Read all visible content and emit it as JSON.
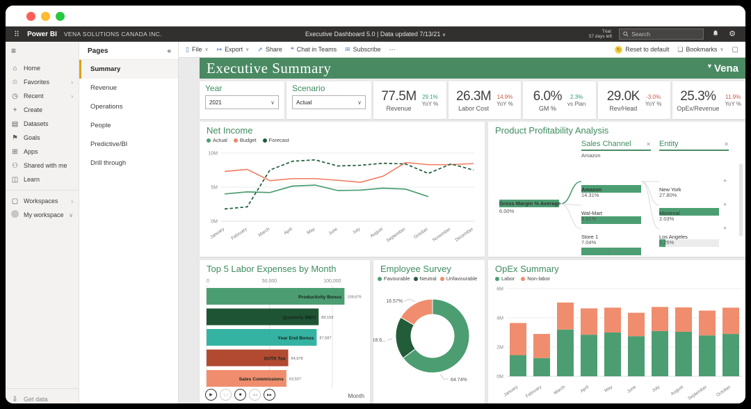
{
  "colors": {
    "brand_green": "#4a8a63",
    "title_green": "#3f8b5f",
    "positive": "#2e9e68",
    "negative": "#c65a45",
    "actual": "#4c9e72",
    "budget": "#f0836a",
    "forecast": "#1e5c38",
    "neutral_dark": "#225c39",
    "salmon": "#f08d6e",
    "teal": "#35b3a2",
    "rust": "#b14a31",
    "dark_green_bar": "#1e5434"
  },
  "titlebar": {
    "traffic_lights": [
      "#ff5f57",
      "#febc2e",
      "#28c840"
    ]
  },
  "topbar": {
    "waffle": "⠿",
    "app_name": "Power BI",
    "org_name": "VENA SOLUTIONS CANADA INC.",
    "center_text": "Executive Dashboard 5.0  |  Data updated 7/13/21",
    "center_chevron": "∨",
    "trial_line1": "Trial:",
    "trial_line2": "57 days left",
    "search_placeholder": "Search",
    "bell_glyph": "",
    "gear_glyph": "⚙"
  },
  "sidebar": {
    "burger": "≡",
    "items": [
      {
        "label": "Home",
        "icon": "home-icon",
        "glyph": "⌂",
        "chevron": ""
      },
      {
        "label": "Favorites",
        "icon": "star-icon",
        "glyph": "☆",
        "chevron": "›"
      },
      {
        "label": "Recent",
        "icon": "clock-icon",
        "glyph": "◷",
        "chevron": "›"
      },
      {
        "label": "Create",
        "icon": "plus-icon",
        "glyph": "+",
        "chevron": ""
      },
      {
        "label": "Datasets",
        "icon": "datasets-icon",
        "glyph": "▤",
        "chevron": ""
      },
      {
        "label": "Goals",
        "icon": "goals-icon",
        "glyph": "⚑",
        "chevron": ""
      },
      {
        "label": "Apps",
        "icon": "apps-icon",
        "glyph": "⊞",
        "chevron": ""
      },
      {
        "label": "Shared with me",
        "icon": "shared-icon",
        "glyph": "⚇",
        "chevron": ""
      },
      {
        "label": "Learn",
        "icon": "learn-icon",
        "glyph": "◫",
        "chevron": ""
      }
    ],
    "workspace_items": [
      {
        "label": "Workspaces",
        "icon": "workspaces-icon",
        "glyph": "▢",
        "chevron": "›"
      },
      {
        "label": "My workspace",
        "icon": "avatar-icon",
        "glyph": "",
        "chevron": "∨"
      }
    ],
    "bottom_label": "Get data"
  },
  "pages_panel": {
    "title": "Pages",
    "collapse_glyph": "«",
    "selected": "Summary",
    "items": [
      "Summary",
      "Revenue",
      "Operations",
      "People",
      "Predictive/BI",
      "Drill through"
    ]
  },
  "toolbar": {
    "items": [
      {
        "label": "File",
        "glyph": "▯",
        "chevron": "∨"
      },
      {
        "label": "Export",
        "glyph": "↦",
        "chevron": "∨"
      },
      {
        "label": "Share",
        "glyph": "⇗",
        "chevron": ""
      },
      {
        "label": "Chat in Teams",
        "glyph": "❝",
        "chevron": ""
      },
      {
        "label": "Subscribe",
        "glyph": "✉",
        "chevron": ""
      },
      {
        "label": "⋯",
        "glyph": "",
        "chevron": ""
      }
    ],
    "reset_label": "Reset to default",
    "reset_glyph": "↻",
    "bookmarks_label": "Bookmarks",
    "bookmarks_glyph": "❏",
    "bookmarks_chevron": "∨",
    "fullscreen_glyph": "▢"
  },
  "report": {
    "title": "Executive Summary",
    "brand": "Vena",
    "brand_mark": "▼",
    "slicers": [
      {
        "label": "Year",
        "value": "2021"
      },
      {
        "label": "Scenario",
        "value": "Actual"
      }
    ],
    "kpis": [
      {
        "value": "77.5M",
        "label": "Revenue",
        "delta": "29.1%",
        "delta_label": "YoY %",
        "delta_sign": "pos"
      },
      {
        "value": "26.3M",
        "label": "Labor Cost",
        "delta": "14.9%",
        "delta_label": "YoY %",
        "delta_sign": "neg"
      },
      {
        "value": "6.0%",
        "label": "GM %",
        "delta": "2.3%",
        "delta_label": "vs Plan",
        "delta_sign": "pos"
      },
      {
        "value": "29.0K",
        "label": "Rev/Head",
        "delta": "-3.0%",
        "delta_label": "YoY %",
        "delta_sign": "neg"
      },
      {
        "value": "25.3%",
        "label": "OpEx/Revenue",
        "delta": "11.9%",
        "delta_label": "YoY %",
        "delta_sign": "neg"
      }
    ],
    "labor_player": {
      "buttons": [
        {
          "name": "play",
          "glyph": "▶",
          "active": true
        },
        {
          "name": "pause",
          "glyph": "❙❙",
          "active": false
        },
        {
          "name": "stop",
          "glyph": "■",
          "active": true
        },
        {
          "name": "previous",
          "glyph": "◀◀",
          "active": false
        },
        {
          "name": "next",
          "glyph": "▶▶",
          "active": true
        }
      ]
    }
  },
  "chart_data": [
    {
      "type": "line",
      "title": "Net Income",
      "ylim": [
        0,
        10
      ],
      "unit": "M",
      "yticks": [
        {
          "v": 0,
          "label": "0M"
        },
        {
          "v": 5,
          "label": "5M"
        },
        {
          "v": 10,
          "label": "10M"
        }
      ],
      "x": [
        "January",
        "February",
        "March",
        "April",
        "May",
        "June",
        "July",
        "August",
        "September",
        "October",
        "November",
        "December"
      ],
      "series": [
        {
          "name": "Actual",
          "color": "#4c9e72",
          "style": "solid",
          "values": [
            4.0,
            4.3,
            4.2,
            5.15,
            5.3,
            4.5,
            4.55,
            4.85,
            4.7,
            3.6,
            null,
            null
          ]
        },
        {
          "name": "Budget",
          "color": "#f0836a",
          "style": "solid",
          "values": [
            7.3,
            7.6,
            5.95,
            6.25,
            6.25,
            6.0,
            5.7,
            6.6,
            8.6,
            8.3,
            8.3,
            8.45
          ]
        },
        {
          "name": "Forecast",
          "color": "#1e5c38",
          "style": "dashed",
          "values": [
            1.8,
            2.1,
            7.5,
            8.8,
            9.0,
            8.1,
            8.2,
            8.5,
            8.4,
            7.0,
            8.4,
            7.5
          ]
        }
      ],
      "legend_position": "top",
      "grid": true
    },
    {
      "type": "tree",
      "title": "Product Profitability Analysis",
      "root": {
        "label": "Gross Margin % Average",
        "value": "6.00%"
      },
      "levels": [
        {
          "header": "Sales Channel",
          "close_glyph": "✕",
          "selected_value": "Amazon",
          "nodes": [
            {
              "label": "Amazon",
              "value": "14.31%",
              "fill": 1,
              "bold": true
            },
            {
              "label": "Wal-Mart",
              "value": "8.51%",
              "fill": 1,
              "bold": false
            },
            {
              "label": "Store 1",
              "value": "7.04%",
              "fill": 1,
              "bold": false
            }
          ]
        },
        {
          "header": "Entity",
          "close_glyph": "✕",
          "selected_value": "",
          "nodes": [
            {
              "label": "New York",
              "value": "27.80%",
              "fill": 1,
              "bold": false
            },
            {
              "label": "Montreal",
              "value": "2.03%",
              "fill": 0.1,
              "bold": false
            },
            {
              "label": "Los Angeles",
              "value": "1.25%",
              "fill": 0.09,
              "bold": false
            }
          ]
        }
      ],
      "expand_glyph": "+",
      "more_glyph": "∨"
    },
    {
      "type": "bar",
      "orientation": "horizontal",
      "title": "Top 5 Labor Expenses by Month",
      "categories": [
        "Productivity Bonus",
        "Quarterly MBO",
        "Year End Bonus",
        "SUTA Tax",
        "Sales Commissions"
      ],
      "values": [
        109676,
        89159,
        87587,
        64978,
        63507
      ],
      "value_labels": [
        "109,676",
        "89,159",
        "87,587",
        "64,978",
        "63,507"
      ],
      "colors": [
        "#4c9e72",
        "#1e5434",
        "#35b3a2",
        "#b14a31",
        "#f08d6e"
      ],
      "xlim": [
        0,
        115000
      ],
      "xticks": [
        {
          "v": 0,
          "label": "0"
        },
        {
          "v": 50000,
          "label": "50,000"
        },
        {
          "v": 100000,
          "label": "100,000"
        }
      ],
      "axis_label": "Month"
    },
    {
      "type": "pie",
      "title": "Employee Survey",
      "donut": true,
      "legend": [
        "Favourable",
        "Neutral",
        "Unfavourable"
      ],
      "slices": [
        {
          "name": "Favourable",
          "value": 64.74,
          "label": "64.74%",
          "color": "#4c9e72"
        },
        {
          "name": "Neutral",
          "value": 18.69,
          "label": "18.6...",
          "color": "#225c39"
        },
        {
          "name": "Unfavourable",
          "value": 16.57,
          "label": "16.57%",
          "color": "#f08d6e"
        }
      ]
    },
    {
      "type": "stacked-bar",
      "title": "OpEx Summary",
      "ylim": [
        0,
        6
      ],
      "unit": "M",
      "yticks": [
        {
          "v": 0,
          "label": "0M"
        },
        {
          "v": 2,
          "label": "2M"
        },
        {
          "v": 4,
          "label": "4M"
        },
        {
          "v": 6,
          "label": "6M"
        }
      ],
      "categories": [
        "January",
        "February",
        "March",
        "April",
        "May",
        "June",
        "July",
        "August",
        "September",
        "October"
      ],
      "series": [
        {
          "name": "Labor",
          "color": "#4c9e72",
          "values": [
            1.45,
            1.25,
            3.2,
            2.85,
            3.0,
            2.75,
            3.1,
            3.05,
            2.8,
            2.9
          ]
        },
        {
          "name": "Non-labor",
          "color": "#f08d6e",
          "values": [
            2.2,
            1.65,
            1.85,
            1.8,
            1.7,
            1.6,
            1.65,
            1.67,
            1.7,
            1.8
          ]
        }
      ],
      "legend_position": "top",
      "grid": true
    }
  ]
}
